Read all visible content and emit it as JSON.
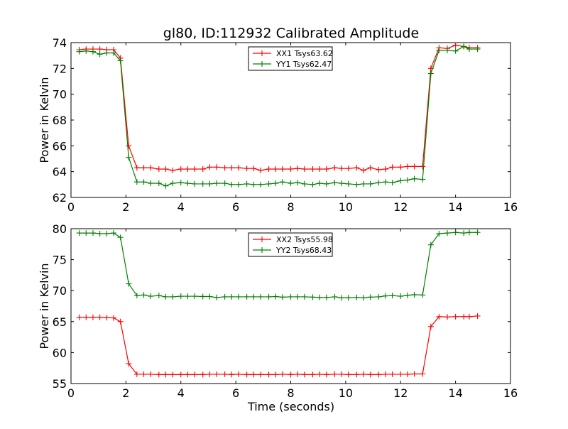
{
  "figure": {
    "title": "gl80, ID:112932 Calibrated Amplitude",
    "xlabel": "Time (seconds)"
  },
  "colors": {
    "red": "#ff0000",
    "green": "#008000",
    "axes": "#000000",
    "background": "#ffffff"
  },
  "chart_data": [
    {
      "type": "line",
      "title": "gl80, ID:112932 Calibrated Amplitude",
      "xlabel": "",
      "ylabel": "Power in Kelvin",
      "xlim": [
        0,
        16
      ],
      "ylim": [
        62,
        74
      ],
      "xticks": [
        0,
        2,
        4,
        6,
        8,
        10,
        12,
        14,
        16
      ],
      "yticks": [
        62,
        64,
        66,
        68,
        70,
        72,
        74
      ],
      "grid": false,
      "legend_position": "upper center",
      "x": [
        0.3,
        0.55,
        0.8,
        1.05,
        1.3,
        1.55,
        1.8,
        2.1,
        2.4,
        2.65,
        2.9,
        3.2,
        3.45,
        3.7,
        4.0,
        4.25,
        4.5,
        4.8,
        5.05,
        5.3,
        5.6,
        5.85,
        6.1,
        6.4,
        6.65,
        6.9,
        7.2,
        7.45,
        7.7,
        8.0,
        8.25,
        8.5,
        8.8,
        9.05,
        9.3,
        9.6,
        9.85,
        10.1,
        10.4,
        10.65,
        10.9,
        11.2,
        11.45,
        11.7,
        12.0,
        12.25,
        12.5,
        12.8,
        13.1,
        13.4,
        13.7,
        14.0,
        14.3,
        14.5,
        14.8
      ],
      "series": [
        {
          "name": "XX1 Tsys63.62",
          "color": "#ff0000",
          "values": [
            73.45,
            73.5,
            73.5,
            73.5,
            73.45,
            73.45,
            72.8,
            66.0,
            64.3,
            64.3,
            64.3,
            64.2,
            64.2,
            64.1,
            64.2,
            64.2,
            64.2,
            64.2,
            64.35,
            64.35,
            64.3,
            64.3,
            64.3,
            64.25,
            64.25,
            64.1,
            64.2,
            64.2,
            64.2,
            64.2,
            64.25,
            64.2,
            64.2,
            64.2,
            64.2,
            64.3,
            64.25,
            64.25,
            64.3,
            64.1,
            64.3,
            64.15,
            64.2,
            64.35,
            64.35,
            64.4,
            64.4,
            64.4,
            72.0,
            73.6,
            73.55,
            73.8,
            73.7,
            73.6,
            73.6
          ]
        },
        {
          "name": "YY1 Tsys62.47",
          "color": "#008000",
          "values": [
            73.3,
            73.35,
            73.3,
            73.1,
            73.2,
            73.2,
            72.6,
            65.1,
            63.2,
            63.2,
            63.1,
            63.1,
            62.9,
            63.1,
            63.15,
            63.1,
            63.05,
            63.05,
            63.05,
            63.1,
            63.1,
            63.0,
            63.0,
            63.05,
            63.0,
            63.0,
            63.05,
            63.1,
            63.2,
            63.1,
            63.15,
            63.05,
            63.0,
            63.1,
            63.05,
            63.15,
            63.1,
            63.05,
            63.0,
            63.05,
            63.05,
            63.15,
            63.2,
            63.15,
            63.3,
            63.35,
            63.45,
            63.4,
            71.6,
            73.4,
            73.4,
            73.35,
            73.7,
            73.5,
            73.5
          ]
        }
      ]
    },
    {
      "type": "line",
      "title": "",
      "xlabel": "Time (seconds)",
      "ylabel": "Power in Kelvin",
      "xlim": [
        0,
        16
      ],
      "ylim": [
        55,
        80
      ],
      "xticks": [
        0,
        2,
        4,
        6,
        8,
        10,
        12,
        14,
        16
      ],
      "yticks": [
        55,
        60,
        65,
        70,
        75,
        80
      ],
      "grid": false,
      "legend_position": "upper center",
      "x": [
        0.3,
        0.55,
        0.8,
        1.05,
        1.3,
        1.55,
        1.8,
        2.1,
        2.4,
        2.65,
        2.9,
        3.2,
        3.45,
        3.7,
        4.0,
        4.25,
        4.5,
        4.8,
        5.05,
        5.3,
        5.6,
        5.85,
        6.1,
        6.4,
        6.65,
        6.9,
        7.2,
        7.45,
        7.7,
        8.0,
        8.25,
        8.5,
        8.8,
        9.05,
        9.3,
        9.6,
        9.85,
        10.1,
        10.4,
        10.65,
        10.9,
        11.2,
        11.45,
        11.7,
        12.0,
        12.25,
        12.5,
        12.8,
        13.1,
        13.4,
        13.7,
        14.0,
        14.3,
        14.5,
        14.8
      ],
      "series": [
        {
          "name": "XX2 Tsys55.98",
          "color": "#ff0000",
          "values": [
            65.7,
            65.7,
            65.7,
            65.7,
            65.65,
            65.6,
            65.0,
            58.2,
            56.5,
            56.5,
            56.5,
            56.45,
            56.45,
            56.45,
            56.45,
            56.45,
            56.45,
            56.45,
            56.5,
            56.5,
            56.5,
            56.45,
            56.5,
            56.45,
            56.45,
            56.45,
            56.45,
            56.45,
            56.5,
            56.45,
            56.5,
            56.45,
            56.45,
            56.5,
            56.45,
            56.5,
            56.5,
            56.45,
            56.45,
            56.5,
            56.45,
            56.45,
            56.5,
            56.5,
            56.5,
            56.5,
            56.55,
            56.55,
            64.2,
            65.8,
            65.75,
            65.8,
            65.8,
            65.8,
            65.9
          ]
        },
        {
          "name": "YY2 Tsys68.43",
          "color": "#008000",
          "values": [
            79.3,
            79.3,
            79.3,
            79.2,
            79.2,
            79.3,
            78.6,
            71.1,
            69.2,
            69.3,
            69.1,
            69.2,
            69.0,
            69.0,
            69.1,
            69.1,
            69.1,
            69.05,
            69.05,
            68.9,
            69.0,
            69.0,
            69.0,
            69.0,
            69.0,
            69.0,
            69.0,
            69.05,
            68.95,
            69.0,
            69.0,
            69.0,
            68.95,
            68.9,
            68.9,
            69.0,
            68.85,
            68.85,
            68.9,
            68.85,
            68.95,
            69.0,
            69.15,
            69.2,
            69.1,
            69.25,
            69.35,
            69.3,
            77.4,
            79.2,
            79.3,
            79.4,
            79.3,
            79.4,
            79.4
          ]
        }
      ]
    }
  ]
}
